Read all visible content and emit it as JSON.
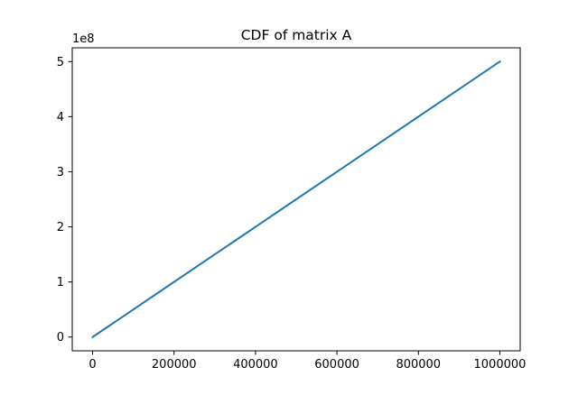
{
  "chart_data": {
    "type": "line",
    "title": "CDF of matrix A",
    "xlabel": "",
    "ylabel": "",
    "y_offset_label": "1e8",
    "xlim": [
      -50000,
      1050000
    ],
    "ylim": [
      -25000000,
      525000000
    ],
    "x_ticks": [
      0,
      200000,
      400000,
      600000,
      800000,
      1000000
    ],
    "x_tick_labels": [
      "0",
      "200000",
      "400000",
      "600000",
      "800000",
      "1000000"
    ],
    "y_ticks": [
      0,
      100000000,
      200000000,
      300000000,
      400000000,
      500000000
    ],
    "y_tick_labels": [
      "0",
      "1",
      "2",
      "3",
      "4",
      "5"
    ],
    "grid": false,
    "legend": "none",
    "series": [
      {
        "color": "#1f77b4",
        "x": [
          0,
          100000,
          200000,
          300000,
          400000,
          500000,
          600000,
          700000,
          800000,
          900000,
          1000000
        ],
        "y": [
          0,
          50000000,
          100000000,
          150000000,
          200000000,
          250000000,
          300000000,
          350000000,
          400000000,
          450000000,
          500000000
        ]
      }
    ]
  }
}
